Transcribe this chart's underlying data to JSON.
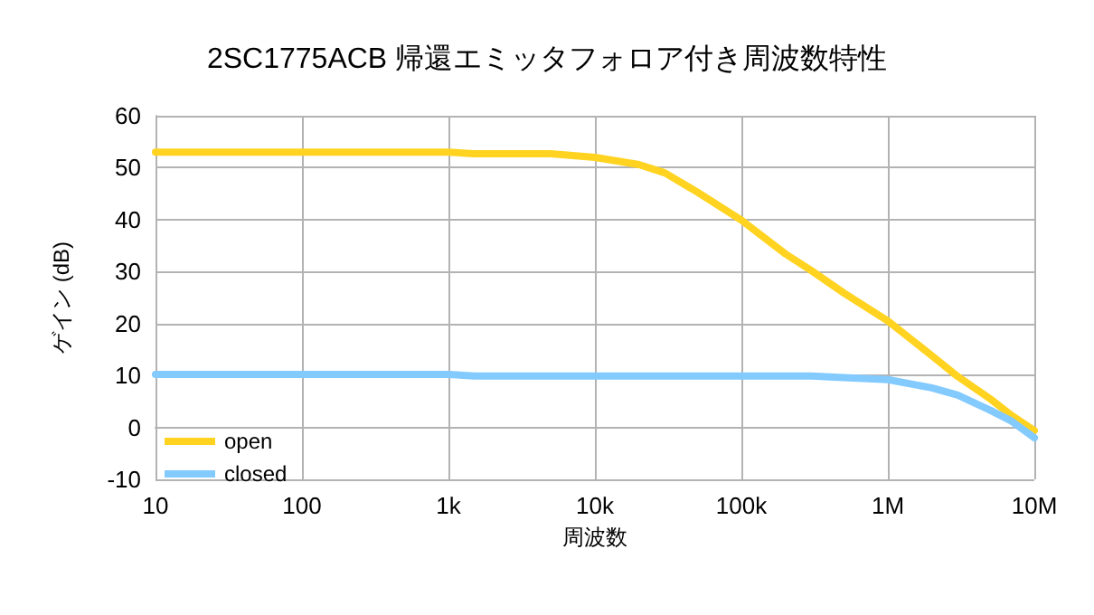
{
  "chart_data": {
    "type": "line",
    "title": "2SC1775ACB 帰還エミッタフォロア付き周波数特性",
    "xlabel": "周波数",
    "ylabel": "ゲイン (dB)",
    "x": [
      10,
      100,
      1000,
      1500,
      5000,
      10000,
      20000,
      30000,
      50000,
      100000,
      200000,
      300000,
      500000,
      1000000,
      2000000,
      3000000,
      5000000,
      7000000,
      10000000
    ],
    "series": [
      {
        "name": "open",
        "color": "#ffd320",
        "values": [
          53,
          53,
          53,
          52.7,
          52.7,
          52,
          50.6,
          49,
          45.3,
          39.9,
          33.4,
          30.2,
          25.9,
          20.5,
          13.8,
          9.8,
          5.5,
          2.3,
          -0.6
        ]
      },
      {
        "name": "closed",
        "color": "#83caff",
        "values": [
          10.2,
          10.2,
          10.2,
          9.9,
          9.9,
          9.9,
          9.9,
          9.9,
          9.9,
          9.9,
          9.9,
          9.9,
          9.6,
          9.2,
          7.6,
          6.2,
          3.3,
          1.2,
          -2
        ]
      }
    ],
    "log": "x",
    "xlim": [
      10,
      10000000
    ],
    "xticks": [
      10,
      100,
      {
        "value": 1000,
        "label": "1k"
      },
      {
        "value": 10000,
        "label": "10k"
      },
      {
        "value": 100000,
        "label": "100k"
      },
      {
        "value": 1000000,
        "label": "1M"
      },
      {
        "value": 10000000,
        "label": "10M"
      }
    ],
    "ylim": [
      -10,
      60
    ],
    "yticks": [
      -10,
      0,
      10,
      20,
      30,
      40,
      50,
      60
    ],
    "grid": true,
    "legend": "bottom left",
    "marker": "none",
    "line_style": "solid"
  }
}
